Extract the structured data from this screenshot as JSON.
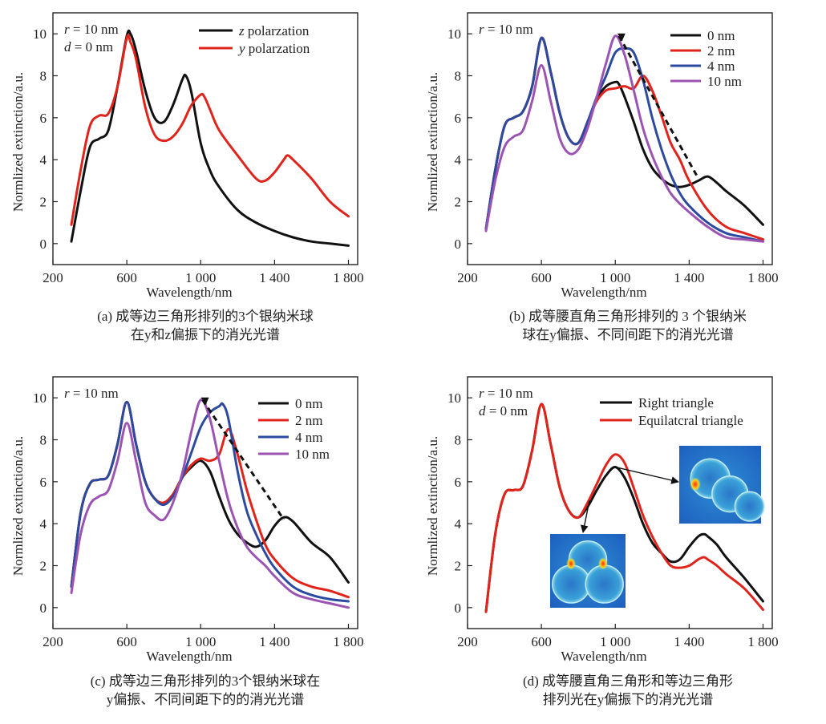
{
  "chart_data": [
    {
      "type": "line",
      "annotation_lines": [
        "r = 10 nm",
        "d = 0 nm"
      ],
      "xlabel": "Wavelength/nm",
      "ylabel": "Normlized extinction/a.u.",
      "xlim": [
        200,
        1850
      ],
      "ylim": [
        -1,
        11
      ],
      "xticks": [
        "200",
        "600",
        "1 000",
        "1 400",
        "1 800"
      ],
      "yticks": [
        "0",
        "2",
        "4",
        "6",
        "8",
        "10"
      ],
      "legend_position": "top-right",
      "series": [
        {
          "name": "z polarzation",
          "color": "#111111",
          "x": [
            300,
            350,
            400,
            450,
            500,
            550,
            600,
            620,
            650,
            700,
            750,
            800,
            850,
            900,
            920,
            950,
            1000,
            1050,
            1100,
            1200,
            1300,
            1400,
            1500,
            1600,
            1700,
            1800
          ],
          "y": [
            0.1,
            2.5,
            4.6,
            5.0,
            5.4,
            7.5,
            9.9,
            10.0,
            9.2,
            7.3,
            6.0,
            5.8,
            6.6,
            7.8,
            8.0,
            7.2,
            4.8,
            3.5,
            2.7,
            1.6,
            1.0,
            0.6,
            0.3,
            0.1,
            0.0,
            -0.1
          ]
        },
        {
          "name": "y polarzation",
          "color": "#e0241b",
          "x": [
            300,
            350,
            400,
            450,
            500,
            550,
            600,
            620,
            650,
            700,
            750,
            800,
            850,
            900,
            950,
            1000,
            1020,
            1050,
            1100,
            1200,
            1300,
            1350,
            1400,
            1450,
            1470,
            1500,
            1600,
            1700,
            1800
          ],
          "y": [
            0.9,
            3.5,
            5.6,
            6.1,
            6.2,
            7.5,
            9.8,
            9.6,
            8.8,
            6.5,
            5.2,
            4.9,
            5.1,
            5.7,
            6.6,
            7.1,
            7.0,
            6.4,
            5.4,
            4.2,
            3.1,
            3.0,
            3.4,
            4.0,
            4.2,
            4.0,
            3.1,
            2.0,
            1.3
          ]
        }
      ],
      "caption": [
        "(a) 成等边三角形排列的3个银纳米球",
        "在y和z偏振下的消光光谱"
      ]
    },
    {
      "type": "line",
      "annotation_lines": [
        "r = 10 nm"
      ],
      "xlabel": "Wavelength/nm",
      "ylabel": "Normlized extinction/a.u.",
      "xlim": [
        200,
        1850
      ],
      "ylim": [
        -1,
        11
      ],
      "xticks": [
        "200",
        "600",
        "1 000",
        "1 400",
        "1 800"
      ],
      "yticks": [
        "0",
        "2",
        "4",
        "6",
        "8",
        "10"
      ],
      "legend_position": "top-right",
      "series": [
        {
          "name": "0 nm",
          "color": "#111111",
          "x": [
            300,
            350,
            400,
            450,
            500,
            550,
            600,
            650,
            700,
            750,
            800,
            850,
            900,
            950,
            1000,
            1020,
            1050,
            1100,
            1150,
            1200,
            1250,
            1300,
            1350,
            1400,
            1450,
            1500,
            1550,
            1600,
            1700,
            1800
          ],
          "y": [
            0.7,
            3.5,
            5.6,
            6.0,
            6.3,
            7.5,
            9.8,
            8.2,
            6.2,
            5.0,
            4.8,
            5.8,
            6.9,
            7.5,
            7.7,
            7.6,
            7.0,
            5.8,
            4.5,
            3.6,
            3.1,
            2.8,
            2.7,
            2.8,
            3.0,
            3.2,
            2.9,
            2.5,
            1.8,
            0.9
          ]
        },
        {
          "name": "2 nm",
          "color": "#e0241b",
          "x": [
            300,
            350,
            400,
            450,
            500,
            550,
            600,
            650,
            700,
            750,
            800,
            850,
            900,
            950,
            1000,
            1050,
            1100,
            1150,
            1200,
            1250,
            1300,
            1350,
            1400,
            1500,
            1600,
            1700,
            1800
          ],
          "y": [
            0.7,
            3.5,
            5.6,
            6.0,
            6.3,
            7.5,
            9.8,
            8.2,
            6.2,
            5.0,
            4.8,
            5.8,
            6.8,
            7.3,
            7.4,
            7.5,
            7.4,
            8.0,
            7.3,
            6.1,
            4.8,
            4.0,
            3.0,
            1.6,
            0.8,
            0.5,
            0.2
          ]
        },
        {
          "name": "4 nm",
          "color": "#2b4aa0",
          "x": [
            300,
            350,
            400,
            450,
            500,
            550,
            600,
            650,
            700,
            750,
            800,
            850,
            900,
            950,
            1000,
            1050,
            1100,
            1150,
            1200,
            1250,
            1300,
            1350,
            1400,
            1500,
            1600,
            1700,
            1800
          ],
          "y": [
            0.7,
            3.5,
            5.6,
            6.0,
            6.3,
            7.5,
            9.8,
            8.2,
            6.2,
            5.0,
            4.8,
            5.8,
            7.0,
            8.0,
            9.1,
            9.3,
            9.1,
            7.8,
            6.0,
            4.5,
            3.3,
            2.4,
            1.8,
            1.0,
            0.5,
            0.3,
            0.1
          ]
        },
        {
          "name": "10 nm",
          "color": "#9c54b3",
          "x": [
            300,
            350,
            400,
            450,
            500,
            550,
            600,
            650,
            700,
            750,
            800,
            850,
            900,
            950,
            1000,
            1050,
            1100,
            1150,
            1200,
            1250,
            1300,
            1350,
            1400,
            1500,
            1600,
            1700,
            1800
          ],
          "y": [
            0.6,
            3.0,
            4.6,
            5.1,
            5.4,
            6.8,
            8.5,
            6.8,
            5.0,
            4.3,
            4.5,
            5.5,
            7.0,
            8.6,
            9.9,
            9.0,
            7.3,
            5.5,
            4.2,
            3.2,
            2.4,
            1.9,
            1.5,
            0.8,
            0.3,
            0.2,
            0.1
          ]
        }
      ],
      "trend_arrow": {
        "from": [
          1020,
          9.9
        ],
        "to": [
          1450,
          3.1
        ],
        "style": "dashed"
      },
      "caption": [
        "(b) 成等腰直角三角形排列的 3 个银纳米",
        "球在y偏振、不同间距下的消光光谱"
      ]
    },
    {
      "type": "line",
      "annotation_lines": [
        "r = 10 nm"
      ],
      "xlabel": "Wavelength/nm",
      "ylabel": "Normlized extinction/a.u.",
      "xlim": [
        200,
        1850
      ],
      "ylim": [
        -1,
        11
      ],
      "xticks": [
        "200",
        "600",
        "1 000",
        "1 400",
        "1 800"
      ],
      "yticks": [
        "0",
        "2",
        "4",
        "6",
        "8",
        "10"
      ],
      "legend_position": "top-right",
      "series": [
        {
          "name": "0 nm",
          "color": "#111111",
          "x": [
            300,
            350,
            400,
            450,
            500,
            550,
            600,
            650,
            700,
            750,
            800,
            850,
            900,
            950,
            1000,
            1050,
            1100,
            1150,
            1200,
            1250,
            1300,
            1350,
            1400,
            1450,
            1500,
            1600,
            1700,
            1800
          ],
          "y": [
            1.0,
            4.5,
            5.9,
            6.1,
            6.3,
            7.8,
            9.8,
            7.8,
            6.0,
            5.2,
            5.0,
            5.4,
            6.2,
            6.7,
            7.0,
            6.5,
            5.3,
            4.2,
            3.5,
            3.1,
            2.9,
            3.2,
            3.9,
            4.3,
            4.1,
            3.1,
            2.4,
            1.2
          ]
        },
        {
          "name": "2 nm",
          "color": "#e0241b",
          "x": [
            300,
            350,
            400,
            450,
            500,
            550,
            600,
            650,
            700,
            750,
            800,
            850,
            900,
            950,
            1000,
            1050,
            1100,
            1150,
            1200,
            1250,
            1300,
            1350,
            1400,
            1500,
            1600,
            1700,
            1800
          ],
          "y": [
            1.0,
            4.5,
            5.9,
            6.1,
            6.3,
            7.8,
            9.8,
            7.8,
            6.0,
            5.2,
            5.0,
            5.4,
            6.2,
            6.8,
            7.1,
            7.0,
            7.3,
            8.5,
            7.3,
            5.6,
            4.2,
            3.0,
            2.3,
            1.4,
            1.0,
            0.8,
            0.5
          ]
        },
        {
          "name": "4 nm",
          "color": "#2b4aa0",
          "x": [
            300,
            350,
            400,
            450,
            500,
            550,
            600,
            650,
            700,
            750,
            800,
            850,
            900,
            950,
            1000,
            1050,
            1100,
            1120,
            1150,
            1200,
            1250,
            1300,
            1350,
            1400,
            1500,
            1600,
            1700,
            1800
          ],
          "y": [
            1.0,
            4.5,
            5.9,
            6.1,
            6.3,
            7.8,
            9.8,
            7.8,
            6.0,
            5.2,
            4.9,
            5.3,
            6.2,
            7.4,
            8.6,
            9.3,
            9.6,
            9.7,
            9.0,
            6.5,
            4.6,
            3.5,
            2.6,
            1.9,
            1.0,
            0.6,
            0.4,
            0.3
          ]
        },
        {
          "name": "10 nm",
          "color": "#9c54b3",
          "x": [
            300,
            350,
            400,
            450,
            500,
            550,
            600,
            650,
            700,
            750,
            800,
            850,
            900,
            950,
            1000,
            1050,
            1100,
            1150,
            1200,
            1250,
            1300,
            1350,
            1400,
            1500,
            1600,
            1700,
            1800
          ],
          "y": [
            0.7,
            3.5,
            4.9,
            5.3,
            5.6,
            7.0,
            8.8,
            7.0,
            5.0,
            4.4,
            4.2,
            5.0,
            6.4,
            8.4,
            9.9,
            9.0,
            7.0,
            5.1,
            3.8,
            2.9,
            2.4,
            2.0,
            1.5,
            0.7,
            0.4,
            0.2,
            0.0
          ]
        }
      ],
      "trend_arrow": {
        "from": [
          1010,
          9.9
        ],
        "to": [
          1450,
          4.2
        ],
        "style": "dashed"
      },
      "caption": [
        "(c) 成等边三角形排列的3个银纳米球在",
        "y偏振、不同间距下的的消光光谱"
      ]
    },
    {
      "type": "line",
      "annotation_lines": [
        "r = 10 nm",
        "d = 0 nm"
      ],
      "xlabel": "Wavelength/nm",
      "ylabel": "Normlized extinction/a.u.",
      "xlim": [
        200,
        1850
      ],
      "ylim": [
        -1,
        11
      ],
      "xticks": [
        "200",
        "600",
        "1 000",
        "1 400",
        "1 800"
      ],
      "yticks": [
        "0",
        "2",
        "4",
        "6",
        "8",
        "10"
      ],
      "legend_position": "top-right",
      "series": [
        {
          "name": "Right triangle",
          "color": "#111111",
          "x": [
            300,
            350,
            400,
            450,
            500,
            550,
            600,
            650,
            700,
            750,
            800,
            850,
            900,
            950,
            1000,
            1050,
            1100,
            1150,
            1200,
            1250,
            1300,
            1350,
            1400,
            1450,
            1480,
            1500,
            1550,
            1600,
            1700,
            1800
          ],
          "y": [
            -0.2,
            3.5,
            5.4,
            5.6,
            5.8,
            7.5,
            9.7,
            7.8,
            5.7,
            4.6,
            4.3,
            4.8,
            5.6,
            6.3,
            6.7,
            6.2,
            5.2,
            4.0,
            3.1,
            2.6,
            2.2,
            2.3,
            2.9,
            3.4,
            3.5,
            3.4,
            3.0,
            2.4,
            1.4,
            0.3
          ]
        },
        {
          "name": "Equilatcral triangle",
          "color": "#e0241b",
          "x": [
            300,
            350,
            400,
            450,
            500,
            550,
            600,
            650,
            700,
            750,
            800,
            850,
            900,
            950,
            1000,
            1050,
            1100,
            1150,
            1200,
            1250,
            1300,
            1350,
            1400,
            1450,
            1480,
            1500,
            1550,
            1600,
            1700,
            1800
          ],
          "y": [
            -0.2,
            3.5,
            5.4,
            5.6,
            5.8,
            7.5,
            9.7,
            7.8,
            5.7,
            4.6,
            4.3,
            5.0,
            5.9,
            6.8,
            7.3,
            6.9,
            5.7,
            4.4,
            3.4,
            2.6,
            2.0,
            1.9,
            2.0,
            2.3,
            2.4,
            2.3,
            2.0,
            1.6,
            0.9,
            -0.1
          ]
        }
      ],
      "caption": [
        "(d) 成等腰直角三角形和等边三角形",
        "排列光在y偏振下的消光光谱"
      ]
    }
  ]
}
